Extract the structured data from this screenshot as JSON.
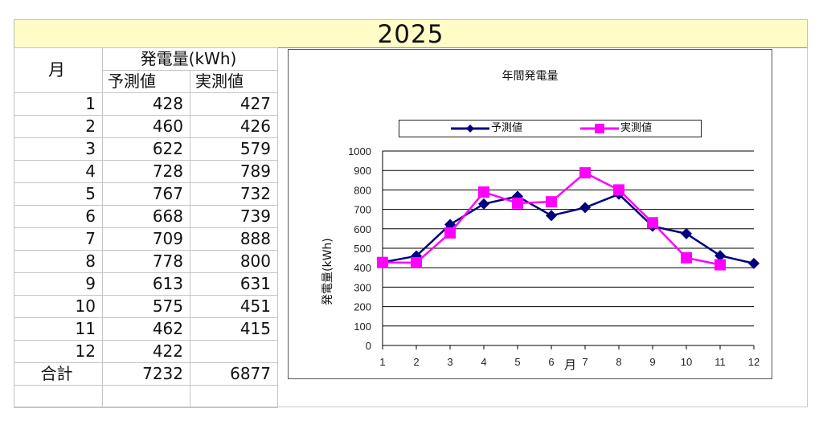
{
  "sheet": {
    "title": "2025",
    "table": {
      "header_month": "月",
      "header_group": "発電量(kWh)",
      "header_forecast": "予測値",
      "header_actual": "実測値",
      "rows": [
        {
          "month": "1",
          "forecast": "428",
          "actual": "427"
        },
        {
          "month": "2",
          "forecast": "460",
          "actual": "426"
        },
        {
          "month": "3",
          "forecast": "622",
          "actual": "579"
        },
        {
          "month": "4",
          "forecast": "728",
          "actual": "789"
        },
        {
          "month": "5",
          "forecast": "767",
          "actual": "732"
        },
        {
          "month": "6",
          "forecast": "668",
          "actual": "739"
        },
        {
          "month": "7",
          "forecast": "709",
          "actual": "888"
        },
        {
          "month": "8",
          "forecast": "778",
          "actual": "800"
        },
        {
          "month": "9",
          "forecast": "613",
          "actual": "631"
        },
        {
          "month": "10",
          "forecast": "575",
          "actual": "451"
        },
        {
          "month": "11",
          "forecast": "462",
          "actual": "415"
        },
        {
          "month": "12",
          "forecast": "422",
          "actual": ""
        }
      ],
      "total_label": "合計",
      "total_forecast": "7232",
      "total_actual": "6877"
    }
  },
  "chart": {
    "title": "年間発電量",
    "legend": [
      "予測値",
      "実測値"
    ],
    "ylabel": "発電量(kWh)",
    "xlabel": "月",
    "colors": {
      "forecast": "#000080",
      "actual": "#ff00ff"
    }
  },
  "chart_data": {
    "type": "line",
    "title": "年間発電量",
    "xlabel": "月",
    "ylabel": "発電量(kWh)",
    "x": [
      1,
      2,
      3,
      4,
      5,
      6,
      7,
      8,
      9,
      10,
      11,
      12
    ],
    "series": [
      {
        "name": "予測値",
        "values": [
          428,
          460,
          622,
          728,
          767,
          668,
          709,
          778,
          613,
          575,
          462,
          422
        ],
        "color": "#000080",
        "marker": "diamond"
      },
      {
        "name": "実測値",
        "values": [
          427,
          426,
          579,
          789,
          732,
          739,
          888,
          800,
          631,
          451,
          415,
          null
        ],
        "color": "#ff00ff",
        "marker": "square"
      }
    ],
    "ylim": [
      0,
      1000
    ],
    "yticks": [
      0,
      100,
      200,
      300,
      400,
      500,
      600,
      700,
      800,
      900,
      1000
    ],
    "grid": true,
    "legend_position": "top"
  }
}
